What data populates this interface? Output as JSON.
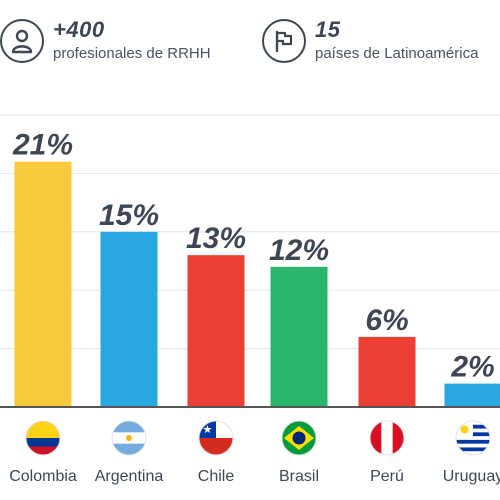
{
  "stats": [
    {
      "value": "+400",
      "label": "profesionales de RRHH",
      "icon": "person-icon"
    },
    {
      "value": "15",
      "label": "países de Latinoamérica",
      "icon": "flag-icon"
    }
  ],
  "colors": {
    "text_dark": "#3e4654",
    "grid": "#e6e6e6",
    "axis": "#555555"
  },
  "chart_data": {
    "type": "bar",
    "categories": [
      "Colombia",
      "Argentina",
      "Chile",
      "Brasil",
      "Perú",
      "Uruguay"
    ],
    "values": [
      21,
      15,
      13,
      12,
      6,
      2
    ],
    "value_labels": [
      "21%",
      "15%",
      "13%",
      "12%",
      "6%",
      "2%"
    ],
    "bar_colors": [
      "#f9c93d",
      "#28a7e1",
      "#ee3f34",
      "#2ab56d",
      "#ee3f34",
      "#28a7e1"
    ],
    "flags": [
      "colombia-flag-icon",
      "argentina-flag-icon",
      "chile-flag-icon",
      "brasil-flag-icon",
      "peru-flag-icon",
      "uruguay-flag-icon"
    ],
    "ylim": [
      0,
      25
    ],
    "grid": true
  }
}
